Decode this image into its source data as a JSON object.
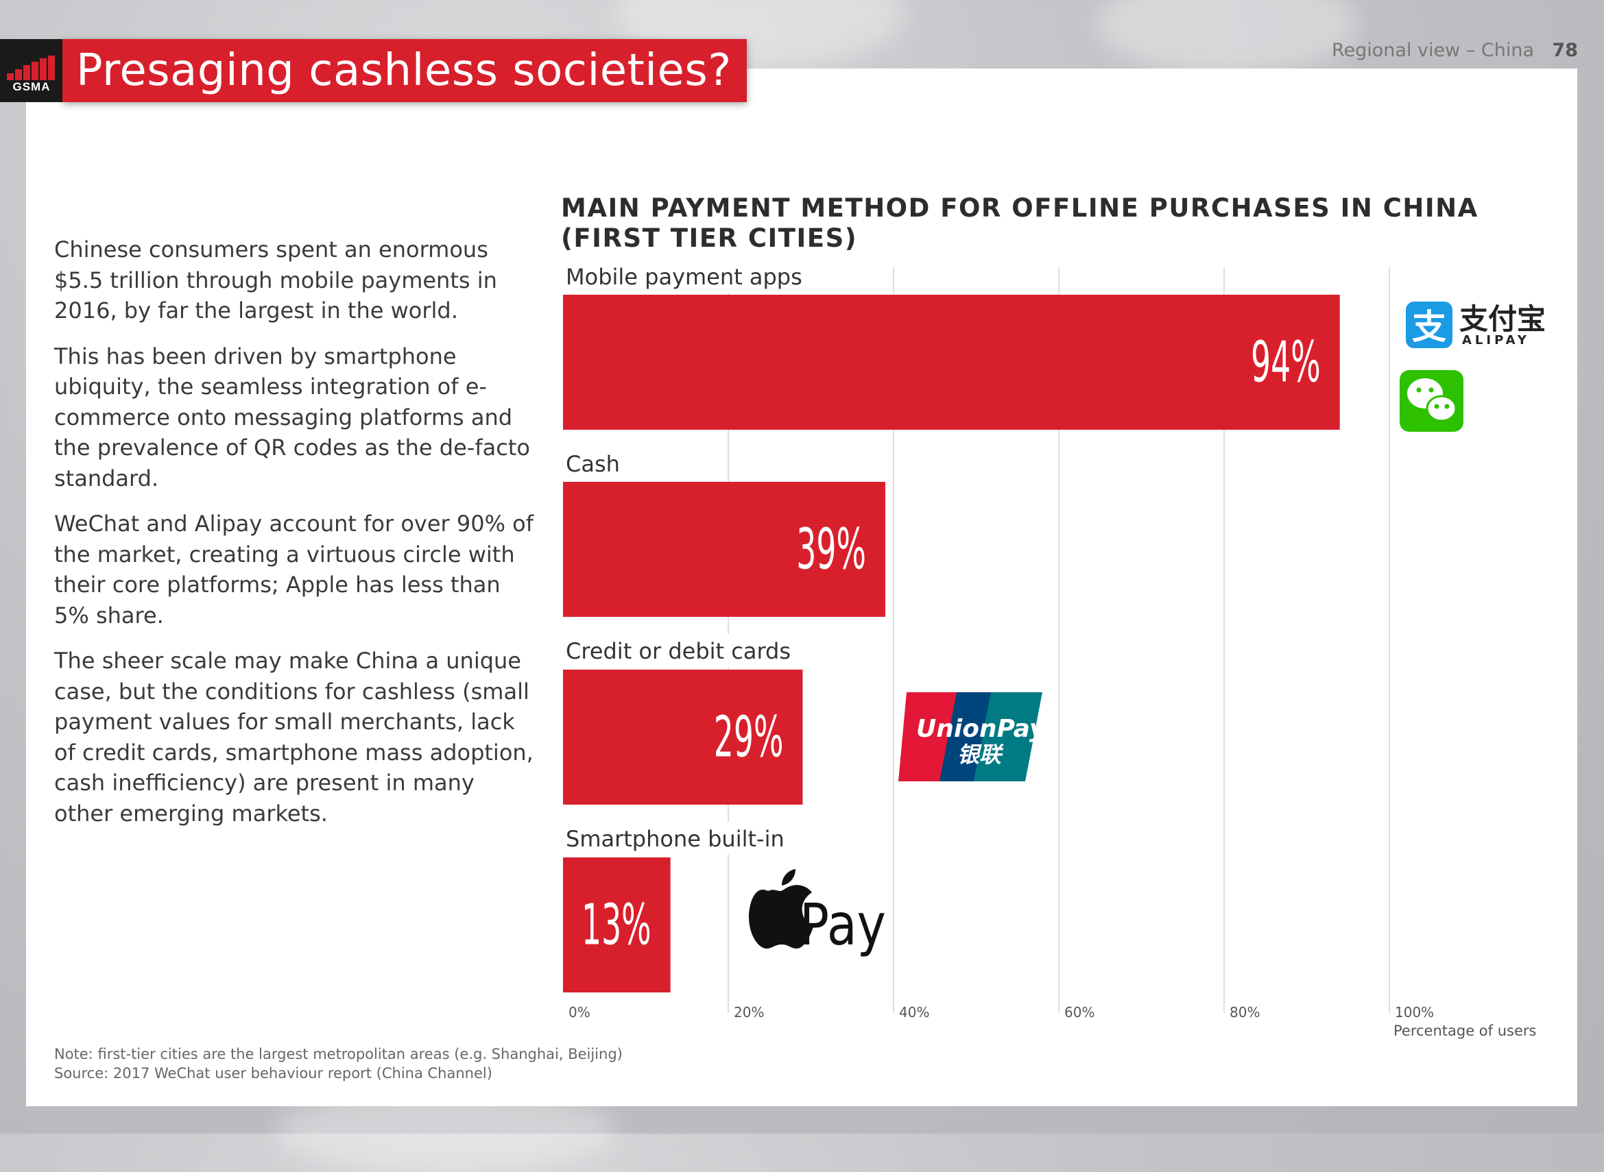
{
  "header": {
    "logo_text": "GSMA",
    "title": "Presaging cashless societies?",
    "region": "Regional view – China",
    "page_number": "78"
  },
  "body": {
    "paragraphs": [
      "Chinese consumers spent an enormous $5.5 trillion through mobile payments in 2016, by far the largest in the world.",
      "This has been driven by smartphone ubiquity, the seamless integration of e-commerce onto messaging platforms and the prevalence of QR codes as the de-facto standard.",
      "WeChat and Alipay account for over 90% of the market, creating a virtuous circle with their core platforms; Apple has less than 5% share.",
      "The sheer scale may make China a unique case, but the conditions for cashless (small payment values for small merchants, lack of credit cards, smartphone mass adoption, cash inefficiency) are present in many other emerging markets."
    ]
  },
  "chart_data": {
    "type": "bar",
    "orientation": "horizontal",
    "title_line1": "MAIN PAYMENT METHOD FOR OFFLINE PURCHASES IN CHINA",
    "title_line2": "(FIRST TIER CITIES)",
    "categories": [
      "Mobile payment apps",
      "Cash",
      "Credit or debit cards",
      "Smartphone built-in"
    ],
    "values": [
      94,
      39,
      29,
      13
    ],
    "value_labels": [
      "94%",
      "39%",
      "29%",
      "13%"
    ],
    "xlim": [
      0,
      100
    ],
    "x_ticks": [
      0,
      20,
      40,
      60,
      80,
      100
    ],
    "x_tick_labels": [
      "0%",
      "20%",
      "40%",
      "60%",
      "80%",
      "100%"
    ],
    "xlabel": "Percentage of users",
    "grid": true,
    "bar_color": "#d8202c",
    "brand_logos": {
      "alipay": {
        "cn": "支付宝",
        "en": "ALIPAY"
      },
      "wechat": "wechat-icon",
      "unionpay": {
        "en": "UnionPay",
        "cn": "银联"
      },
      "applepay": "Pay"
    }
  },
  "footnote": {
    "note": "Note: first-tier cities are the largest metropolitan areas (e.g. Shanghai, Beijing)",
    "source": "Source: 2017 WeChat user behaviour report (China Channel)"
  },
  "colors": {
    "accent_red": "#d8202c",
    "alipay_blue": "#1a9be3",
    "wechat_green": "#2dc100",
    "unionpay_red": "#e21836",
    "unionpay_navy": "#00447c",
    "unionpay_teal": "#007b84"
  }
}
